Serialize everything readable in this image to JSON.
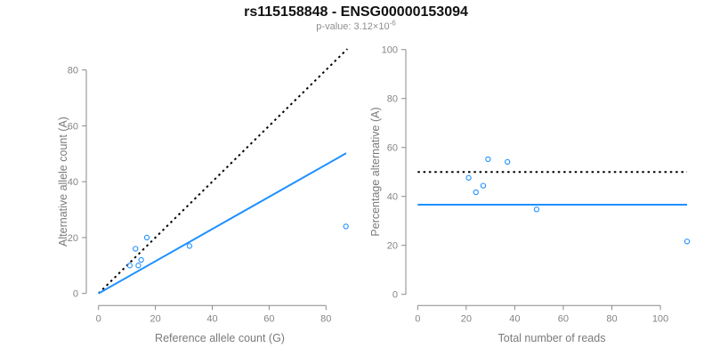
{
  "header": {
    "title": "rs115158848 - ENSG00000153094",
    "subtitle_prefix": "p-value: 3.12×10",
    "subtitle_exponent": "-6"
  },
  "colors": {
    "accent_blue": "#1e90ff",
    "line_black": "#000000",
    "axis_gray": "#8a8a8a",
    "label_gray": "#858585",
    "axis_title_gray": "#7b7b7b",
    "title_black": "#111111",
    "subtitle_gray": "#8f8f8f"
  },
  "chart_data": [
    {
      "type": "scatter",
      "panel": "allele-counts",
      "xlabel": "Reference allele count (G)",
      "ylabel": "Alternative allele count (A)",
      "xticks": [
        0,
        20,
        40,
        60,
        80
      ],
      "yticks": [
        0,
        20,
        40,
        60,
        80
      ],
      "xlim": [
        0,
        87.5
      ],
      "ylim": [
        0,
        87.5
      ],
      "grid": false,
      "points": [
        [
          11,
          10
        ],
        [
          13,
          16
        ],
        [
          14,
          10
        ],
        [
          15,
          12
        ],
        [
          17,
          20
        ],
        [
          32,
          17
        ],
        [
          87,
          24
        ]
      ],
      "lines": [
        {
          "name": "identity-line",
          "style": "dotted",
          "color_key": "line_black",
          "x1": 0,
          "y1": 0,
          "x2": 87.5,
          "y2": 87.5
        },
        {
          "name": "allelic-ratio-fit-line",
          "style": "solid",
          "color_key": "accent_blue",
          "x1": 0,
          "y1": 0,
          "x2": 87.1,
          "y2": 50.2
        }
      ]
    },
    {
      "type": "scatter",
      "panel": "percentage-vs-coverage",
      "xlabel": "Total number of reads",
      "ylabel": "Percentage alternative (A)",
      "xticks": [
        0,
        20,
        40,
        60,
        80,
        100
      ],
      "yticks": [
        0,
        20,
        40,
        60,
        80,
        100
      ],
      "xlim": [
        0,
        111.5
      ],
      "ylim": [
        0,
        100
      ],
      "grid": false,
      "points": [
        [
          21,
          47.6
        ],
        [
          24,
          41.7
        ],
        [
          27,
          44.4
        ],
        [
          29,
          55.2
        ],
        [
          37,
          54.1
        ],
        [
          49,
          34.7
        ],
        [
          111,
          21.6
        ]
      ],
      "lines": [
        {
          "name": "fifty-percent-line",
          "style": "dotted",
          "color_key": "line_black",
          "x1": 0,
          "y1": 50,
          "x2": 111,
          "y2": 50
        },
        {
          "name": "mean-percentage-line",
          "style": "solid",
          "color_key": "accent_blue",
          "x1": 0,
          "y1": 36.6,
          "x2": 111,
          "y2": 36.6
        }
      ]
    }
  ]
}
